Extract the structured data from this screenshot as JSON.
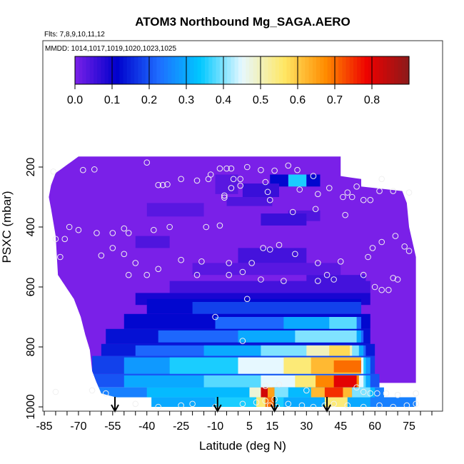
{
  "chart_data": {
    "type": "heatmap",
    "title": "ATOM3 Northbound Mg_SAGA.AERO",
    "notes": {
      "flights": "Flts: 7,8,9,10,11,12",
      "dates": "MMDD: 1014,1017,1019,1020,1023,1025"
    },
    "xlabel": "Latitude (deg N)",
    "ylabel": "PSXC (mbar)",
    "xlim": [
      -85,
      85
    ],
    "ylim": [
      1000,
      50
    ],
    "y_reversed": true,
    "x_ticks": [
      "-85",
      "-70",
      "-55",
      "-40",
      "-25",
      "-10",
      "5",
      "15",
      "30",
      "45",
      "60",
      "75"
    ],
    "y_ticks": [
      "200",
      "400",
      "600",
      "800",
      "1000"
    ],
    "colorbar": {
      "range": [
        0,
        0.9
      ],
      "ticks": [
        "0.0",
        "0.1",
        "0.2",
        "0.3",
        "0.4",
        "0.5",
        "0.6",
        "0.7",
        "0.8"
      ],
      "colors": [
        "#7a20e8",
        "#0000cc",
        "#1e6cff",
        "#00c8ff",
        "#e6f8ff",
        "#ffe866",
        "#ff8c00",
        "#ee0000",
        "#8b1a1a"
      ]
    },
    "profile_markers_lat": [
      -54,
      -9,
      16,
      39
    ],
    "curtain": {
      "left_edge_by_pressure": [
        [
          165,
          -70
        ],
        [
          220,
          -80
        ],
        [
          260,
          -82
        ],
        [
          300,
          -83
        ],
        [
          340,
          -82
        ],
        [
          430,
          -80
        ],
        [
          560,
          -79
        ],
        [
          640,
          -72
        ],
        [
          700,
          -69
        ],
        [
          760,
          -67
        ],
        [
          810,
          -65
        ],
        [
          880,
          -64
        ],
        [
          920,
          -62
        ],
        [
          955,
          -60
        ],
        [
          1000,
          -38
        ]
      ],
      "right_edge_by_pressure": [
        [
          165,
          45
        ],
        [
          230,
          45
        ],
        [
          240,
          54
        ],
        [
          265,
          54
        ],
        [
          280,
          72
        ],
        [
          320,
          74
        ],
        [
          400,
          75
        ],
        [
          500,
          78
        ],
        [
          1000,
          78
        ]
      ],
      "bands": [
        {
          "p": [
            160,
            920
          ],
          "lat": [
            -85,
            80
          ],
          "value": 0.0
        },
        {
          "p": [
            225,
            290
          ],
          "lat": [
            -10,
            0
          ],
          "value": 0.03
        },
        {
          "p": [
            225,
            265
          ],
          "lat": [
            22,
            30
          ],
          "value": 0.35
        },
        {
          "p": [
            225,
            265
          ],
          "lat": [
            14,
            22
          ],
          "value": 0.12
        },
        {
          "p": [
            225,
            265
          ],
          "lat": [
            30,
            36
          ],
          "value": 0.12
        },
        {
          "p": [
            255,
            300
          ],
          "lat": [
            2,
            18
          ],
          "value": 0.06
        },
        {
          "p": [
            300,
            330
          ],
          "lat": [
            -5,
            15
          ],
          "value": 0.04
        },
        {
          "p": [
            320,
            365
          ],
          "lat": [
            -40,
            -15
          ],
          "value": 0.03
        },
        {
          "p": [
            345,
            380
          ],
          "lat": [
            22,
            36
          ],
          "value": 0.04
        },
        {
          "p": [
            355,
            395
          ],
          "lat": [
            10,
            30
          ],
          "value": 0.06
        },
        {
          "p": [
            430,
            470
          ],
          "lat": [
            -45,
            -30
          ],
          "value": 0.04
        },
        {
          "p": [
            470,
            520
          ],
          "lat": [
            0,
            30
          ],
          "value": 0.05
        },
        {
          "p": [
            520,
            560
          ],
          "lat": [
            -20,
            45
          ],
          "value": 0.03
        },
        {
          "p": [
            560,
            600
          ],
          "lat": [
            30,
            56
          ],
          "value": 0.05
        },
        {
          "p": [
            580,
            620
          ],
          "lat": [
            -30,
            58
          ],
          "value": 0.05
        },
        {
          "p": [
            620,
            660
          ],
          "lat": [
            -45,
            58
          ],
          "value": 0.09
        },
        {
          "p": [
            640,
            690
          ],
          "lat": [
            -40,
            54
          ],
          "value": 0.12
        },
        {
          "p": [
            650,
            690
          ],
          "lat": [
            -20,
            54
          ],
          "value": 0.18
        },
        {
          "p": [
            690,
            740
          ],
          "lat": [
            -50,
            58
          ],
          "value": 0.12
        },
        {
          "p": [
            700,
            740
          ],
          "lat": [
            -10,
            54
          ],
          "value": 0.22
        },
        {
          "p": [
            700,
            740
          ],
          "lat": [
            20,
            52
          ],
          "value": 0.3
        },
        {
          "p": [
            700,
            740
          ],
          "lat": [
            40,
            52
          ],
          "value": 0.38
        },
        {
          "p": [
            740,
            790
          ],
          "lat": [
            -58,
            58
          ],
          "value": 0.13
        },
        {
          "p": [
            745,
            785
          ],
          "lat": [
            -35,
            55
          ],
          "value": 0.22
        },
        {
          "p": [
            745,
            785
          ],
          "lat": [
            0,
            54
          ],
          "value": 0.3
        },
        {
          "p": [
            745,
            785
          ],
          "lat": [
            25,
            52
          ],
          "value": 0.4
        },
        {
          "p": [
            790,
            830
          ],
          "lat": [
            -60,
            60
          ],
          "value": 0.14
        },
        {
          "p": [
            795,
            830
          ],
          "lat": [
            -45,
            56
          ],
          "value": 0.22
        },
        {
          "p": [
            795,
            830
          ],
          "lat": [
            -15,
            55
          ],
          "value": 0.3
        },
        {
          "p": [
            795,
            830
          ],
          "lat": [
            10,
            53
          ],
          "value": 0.4
        },
        {
          "p": [
            795,
            830
          ],
          "lat": [
            30,
            50
          ],
          "value": 0.5
        },
        {
          "p": [
            795,
            830
          ],
          "lat": [
            40,
            49
          ],
          "value": 0.58
        },
        {
          "p": [
            830,
            890
          ],
          "lat": [
            -64,
            60
          ],
          "value": 0.18
        },
        {
          "p": [
            835,
            890
          ],
          "lat": [
            -50,
            58
          ],
          "value": 0.28
        },
        {
          "p": [
            835,
            890
          ],
          "lat": [
            -30,
            56
          ],
          "value": 0.35
        },
        {
          "p": [
            835,
            890
          ],
          "lat": [
            0,
            55
          ],
          "value": 0.45
        },
        {
          "p": [
            835,
            890
          ],
          "lat": [
            20,
            54
          ],
          "value": 0.55
        },
        {
          "p": [
            835,
            890
          ],
          "lat": [
            32,
            54
          ],
          "value": 0.62
        },
        {
          "p": [
            845,
            885
          ],
          "lat": [
            42,
            54
          ],
          "value": 0.7
        },
        {
          "p": [
            890,
            935
          ],
          "lat": [
            -65,
            62
          ],
          "value": 0.2
        },
        {
          "p": [
            895,
            935
          ],
          "lat": [
            -50,
            58
          ],
          "value": 0.3
        },
        {
          "p": [
            895,
            935
          ],
          "lat": [
            -15,
            56
          ],
          "value": 0.38
        },
        {
          "p": [
            895,
            935
          ],
          "lat": [
            10,
            55
          ],
          "value": 0.45
        },
        {
          "p": [
            895,
            935
          ],
          "lat": [
            25,
            52
          ],
          "value": 0.55
        },
        {
          "p": [
            895,
            935
          ],
          "lat": [
            34,
            53
          ],
          "value": 0.68
        },
        {
          "p": [
            895,
            935
          ],
          "lat": [
            42,
            52
          ],
          "value": 0.8
        },
        {
          "p": [
            935,
            968
          ],
          "lat": [
            -68,
            64
          ],
          "value": 0.25
        },
        {
          "p": [
            935,
            968
          ],
          "lat": [
            -40,
            60
          ],
          "value": 0.32
        },
        {
          "p": [
            935,
            968
          ],
          "lat": [
            5,
            15
          ],
          "value": 0.48
        },
        {
          "p": [
            935,
            968
          ],
          "lat": [
            10,
            13
          ],
          "value": 0.82
        },
        {
          "p": [
            935,
            968
          ],
          "lat": [
            13,
            16
          ],
          "value": 0.65
        },
        {
          "p": [
            935,
            968
          ],
          "lat": [
            16,
            22
          ],
          "value": 0.4
        },
        {
          "p": [
            935,
            968
          ],
          "lat": [
            32,
            50
          ],
          "value": 0.62
        },
        {
          "p": [
            935,
            968
          ],
          "lat": [
            38,
            46
          ],
          "value": 0.75
        },
        {
          "p": [
            935,
            968
          ],
          "lat": [
            50,
            58
          ],
          "value": 0.4
        },
        {
          "p": [
            968,
            1000
          ],
          "lat": [
            -38,
            78
          ],
          "value": 0.3
        },
        {
          "p": [
            968,
            1000
          ],
          "lat": [
            -10,
            20
          ],
          "value": 0.35
        },
        {
          "p": [
            968,
            1000
          ],
          "lat": [
            8,
            12
          ],
          "value": 0.55
        },
        {
          "p": [
            968,
            1000
          ],
          "lat": [
            12,
            16
          ],
          "value": 0.7
        },
        {
          "p": [
            968,
            1000
          ],
          "lat": [
            38,
            48
          ],
          "value": 0.55
        },
        {
          "p": [
            968,
            1000
          ],
          "lat": [
            58,
            78
          ],
          "value": 0.25
        }
      ]
    },
    "sample_points": [
      [
        -68,
        210
      ],
      [
        -63,
        208
      ],
      [
        -40,
        185
      ],
      [
        -81,
        215
      ],
      [
        -35,
        260
      ],
      [
        -33,
        260
      ],
      [
        -31,
        258
      ],
      [
        -25,
        240
      ],
      [
        -18,
        245
      ],
      [
        -13,
        240
      ],
      [
        -2,
        240
      ],
      [
        -12,
        225
      ],
      [
        -8,
        205
      ],
      [
        -5,
        205
      ],
      [
        -3,
        205
      ],
      [
        1,
        240
      ],
      [
        4,
        200
      ],
      [
        10,
        210
      ],
      [
        16,
        212
      ],
      [
        22,
        195
      ],
      [
        26,
        210
      ],
      [
        33,
        230
      ],
      [
        -6,
        295
      ],
      [
        -3,
        270
      ],
      [
        1,
        262
      ],
      [
        -6,
        302
      ],
      [
        12,
        250
      ],
      [
        13,
        283
      ],
      [
        27,
        275
      ],
      [
        40,
        270
      ],
      [
        46,
        300
      ],
      [
        47,
        360
      ],
      [
        55,
        310
      ],
      [
        58,
        310
      ],
      [
        62,
        280
      ],
      [
        68,
        280
      ],
      [
        75,
        285
      ],
      [
        63,
        240
      ],
      [
        52,
        265
      ],
      [
        48,
        285
      ],
      [
        50,
        300
      ],
      [
        35,
        290
      ],
      [
        34,
        340
      ],
      [
        24,
        350
      ],
      [
        14,
        310
      ],
      [
        -8,
        395
      ],
      [
        -14,
        400
      ],
      [
        -30,
        400
      ],
      [
        -37,
        410
      ],
      [
        -50,
        405
      ],
      [
        -55,
        420
      ],
      [
        -74,
        400
      ],
      [
        -70,
        410
      ],
      [
        -76,
        440
      ],
      [
        -80,
        440
      ],
      [
        -62,
        420
      ],
      [
        -48,
        420
      ],
      [
        -55,
        470
      ],
      [
        -60,
        495
      ],
      [
        -78,
        500
      ],
      [
        -50,
        490
      ],
      [
        -45,
        520
      ],
      [
        -35,
        540
      ],
      [
        -25,
        510
      ],
      [
        -16,
        515
      ],
      [
        -4,
        520
      ],
      [
        2,
        550
      ],
      [
        6,
        520
      ],
      [
        11,
        470
      ],
      [
        14,
        475
      ],
      [
        18,
        460
      ],
      [
        25,
        490
      ],
      [
        35,
        520
      ],
      [
        45,
        515
      ],
      [
        57,
        500
      ],
      [
        59,
        470
      ],
      [
        63,
        450
      ],
      [
        69,
        430
      ],
      [
        73,
        465
      ],
      [
        75,
        480
      ],
      [
        55,
        560
      ],
      [
        60,
        600
      ],
      [
        63,
        610
      ],
      [
        66,
        610
      ],
      [
        68,
        570
      ],
      [
        70,
        575
      ],
      [
        42,
        575
      ],
      [
        39,
        560
      ],
      [
        35,
        580
      ],
      [
        20,
        580
      ],
      [
        10,
        575
      ],
      [
        4,
        640
      ],
      [
        -4,
        560
      ],
      [
        -18,
        560
      ],
      [
        -40,
        560
      ],
      [
        -48,
        560
      ],
      [
        -10,
        700
      ],
      [
        2,
        780
      ],
      [
        12,
        930
      ],
      [
        18,
        925
      ],
      [
        30,
        945
      ],
      [
        52,
        935
      ],
      [
        55,
        950
      ],
      [
        58,
        955
      ],
      [
        61,
        955
      ],
      [
        65,
        955
      ],
      [
        70,
        960
      ],
      [
        78,
        955
      ],
      [
        -80,
        950
      ],
      [
        -64,
        945
      ],
      [
        -58,
        955
      ],
      [
        -45,
        990
      ],
      [
        -35,
        1000
      ],
      [
        -25,
        995
      ],
      [
        -20,
        990
      ],
      [
        -10,
        1000
      ],
      [
        2,
        990
      ],
      [
        8,
        985
      ],
      [
        14,
        995
      ],
      [
        17,
        1000
      ],
      [
        22,
        990
      ],
      [
        28,
        995
      ],
      [
        33,
        1000
      ],
      [
        38,
        995
      ],
      [
        42,
        990
      ],
      [
        48,
        995
      ],
      [
        55,
        1000
      ],
      [
        62,
        995
      ],
      [
        68,
        1000
      ],
      [
        74,
        995
      ],
      [
        78,
        990
      ],
      [
        12,
        980
      ],
      [
        16,
        975
      ]
    ]
  }
}
